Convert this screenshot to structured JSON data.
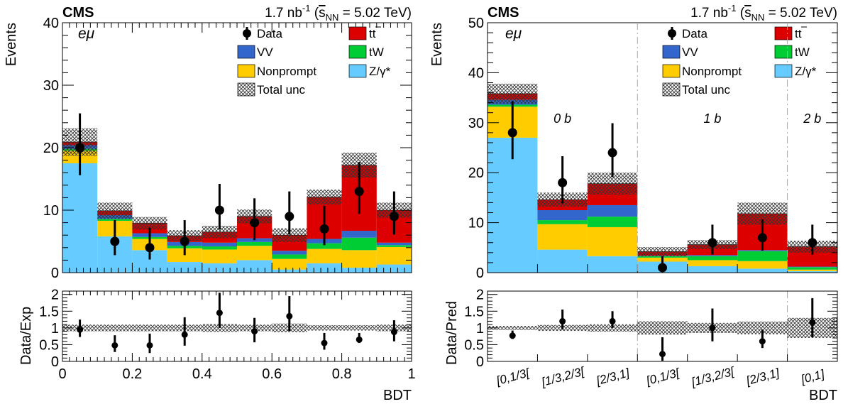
{
  "header": {
    "cms": "CMS",
    "lumi": "1.7 nb",
    "lumi_exp": "-1",
    "energy_pre": "(",
    "sqrt_s": "s",
    "sqrt_sub": "NN",
    "energy_post": " = 5.02 TeV)"
  },
  "channel": "eμ",
  "legend": {
    "data": "Data",
    "ttbar": "tt",
    "vv": "VV",
    "tw": "tW",
    "nonprompt": "Nonprompt",
    "zg": "Z/γ*",
    "unc": "Total unc"
  },
  "colors": {
    "ttbar": "#dd0000",
    "vv": "#3366cc",
    "tw": "#00cc33",
    "nonprompt": "#ffcc00",
    "zg": "#66ccff",
    "unc_hatch": "#333333"
  },
  "chart_data": [
    {
      "type": "bar",
      "stacked": true,
      "xlabel": "BDT",
      "ylabel": "Events",
      "ratio_ylabel": "Data/Exp",
      "xlim": [
        0,
        1
      ],
      "ylim": [
        0,
        40
      ],
      "ratio_ylim": [
        0,
        2.1
      ],
      "x_ticks": [
        "0",
        "0.2",
        "0.4",
        "0.6",
        "0.8",
        "1"
      ],
      "y_ticks": [
        "0",
        "10",
        "20",
        "30",
        "40"
      ],
      "ratio_ticks": [
        "0",
        "0.5",
        "1",
        "1.5",
        "2"
      ],
      "bin_edges": [
        0,
        0.1,
        0.2,
        0.3,
        0.4,
        0.5,
        0.6,
        0.7,
        0.8,
        0.9,
        1.0
      ],
      "series": [
        {
          "name": "Z/γ*",
          "key": "zg",
          "values": [
            17.5,
            5.8,
            3.6,
            1.7,
            1.5,
            2.0,
            0.5,
            1.5,
            0.8,
            1.3
          ]
        },
        {
          "name": "Nonprompt",
          "key": "nonprompt",
          "values": [
            2.0,
            2.5,
            1.8,
            2.2,
            2.2,
            2.3,
            1.7,
            2.3,
            2.8,
            2.8
          ]
        },
        {
          "name": "tW",
          "key": "tw",
          "values": [
            0.3,
            0.3,
            0.3,
            0.4,
            0.5,
            0.6,
            0.7,
            0.9,
            2.0,
            0.3
          ]
        },
        {
          "name": "VV",
          "key": "vv",
          "values": [
            0.6,
            0.6,
            0.6,
            0.6,
            0.6,
            0.6,
            0.6,
            0.7,
            1.1,
            0.4
          ]
        },
        {
          "name": "tt",
          "key": "ttbar",
          "values": [
            0.5,
            0.7,
            1.6,
            1.0,
            1.7,
            3.5,
            2.5,
            6.7,
            10.5,
            5.2
          ]
        }
      ],
      "total_unc": [
        2.2,
        1.3,
        1.0,
        0.9,
        1.0,
        1.1,
        1.1,
        1.2,
        2.0,
        1.2
      ],
      "data": {
        "values": [
          20,
          5,
          4,
          5,
          10,
          8,
          9,
          7,
          13,
          9
        ],
        "err_up": [
          5.5,
          3.4,
          3.2,
          3.4,
          4.2,
          3.9,
          4.0,
          3.7,
          4.7,
          4.0
        ],
        "err_down": [
          4.4,
          2.2,
          1.9,
          2.2,
          3.1,
          2.8,
          2.9,
          2.6,
          3.6,
          2.9
        ]
      },
      "ratio": {
        "values": [
          0.95,
          0.48,
          0.48,
          0.8,
          1.45,
          0.9,
          1.35,
          0.55,
          0.65,
          0.88
        ],
        "err_up": [
          0.3,
          0.3,
          0.35,
          0.52,
          0.6,
          0.4,
          0.6,
          0.3,
          0.2,
          0.35
        ],
        "err_down": [
          0.22,
          0.2,
          0.23,
          0.33,
          0.45,
          0.33,
          0.44,
          0.2,
          0.1,
          0.28
        ],
        "unc_band": [
          0.1,
          0.1,
          0.1,
          0.1,
          0.12,
          0.1,
          0.13,
          0.08,
          0.08,
          0.1
        ]
      }
    },
    {
      "type": "bar",
      "stacked": true,
      "xlabel": "BDT",
      "ylabel": "Events",
      "ratio_ylabel": "Data/Pred",
      "ylim": [
        0,
        50
      ],
      "ratio_ylim": [
        0,
        2.1
      ],
      "y_ticks": [
        "0",
        "10",
        "20",
        "30",
        "40",
        "50"
      ],
      "ratio_ticks": [
        "0",
        "0.5",
        "1",
        "1.5",
        "2"
      ],
      "categories": [
        "[0,1/3[",
        "[1/3,2/3[",
        "[2/3,1]",
        "[0,1/3[",
        "[1/3,2/3[",
        "[2/3,1]",
        "[0,1]"
      ],
      "regions": [
        {
          "label": "0 b",
          "from": 0,
          "to": 3
        },
        {
          "label": "1 b",
          "from": 3,
          "to": 6
        },
        {
          "label": "2 b",
          "from": 6,
          "to": 7
        }
      ],
      "series": [
        {
          "name": "Z/γ*",
          "key": "zg",
          "values": [
            27,
            4.6,
            3.3,
            2.2,
            1.3,
            0.8,
            0.3
          ]
        },
        {
          "name": "Nonprompt",
          "key": "nonprompt",
          "values": [
            6.2,
            5.1,
            5.8,
            0.8,
            1.2,
            1.5,
            0.3
          ]
        },
        {
          "name": "tW",
          "key": "tw",
          "values": [
            0.4,
            0.8,
            2.1,
            0.3,
            0.8,
            2.0,
            0.5
          ]
        },
        {
          "name": "VV",
          "key": "vv",
          "values": [
            1.0,
            2.0,
            2.3,
            0.1,
            0.2,
            0.2,
            0.1
          ]
        },
        {
          "name": "tt",
          "key": "ttbar",
          "values": [
            1.2,
            2.1,
            4.3,
            0.8,
            2.1,
            7.3,
            4.0
          ]
        }
      ],
      "total_unc": [
        2.0,
        1.4,
        2.2,
        0.9,
        0.9,
        2.2,
        1.2
      ],
      "data": {
        "values": [
          28,
          18,
          24,
          1,
          6,
          7,
          6
        ],
        "err_up": [
          6.3,
          5.3,
          5.9,
          2.3,
          3.6,
          3.7,
          3.6
        ],
        "err_down": [
          5.3,
          4.2,
          4.9,
          0.8,
          2.4,
          2.6,
          2.4
        ]
      },
      "ratio": {
        "values": [
          0.77,
          1.2,
          1.2,
          0.22,
          1.0,
          0.6,
          1.17
        ],
        "err_up": [
          0.15,
          0.35,
          0.3,
          0.5,
          0.58,
          0.35,
          0.72
        ],
        "err_down": [
          0.1,
          0.25,
          0.2,
          0.2,
          0.4,
          0.2,
          0.45
        ],
        "unc_band": [
          0.06,
          0.09,
          0.11,
          0.2,
          0.15,
          0.19,
          0.3
        ]
      }
    }
  ]
}
